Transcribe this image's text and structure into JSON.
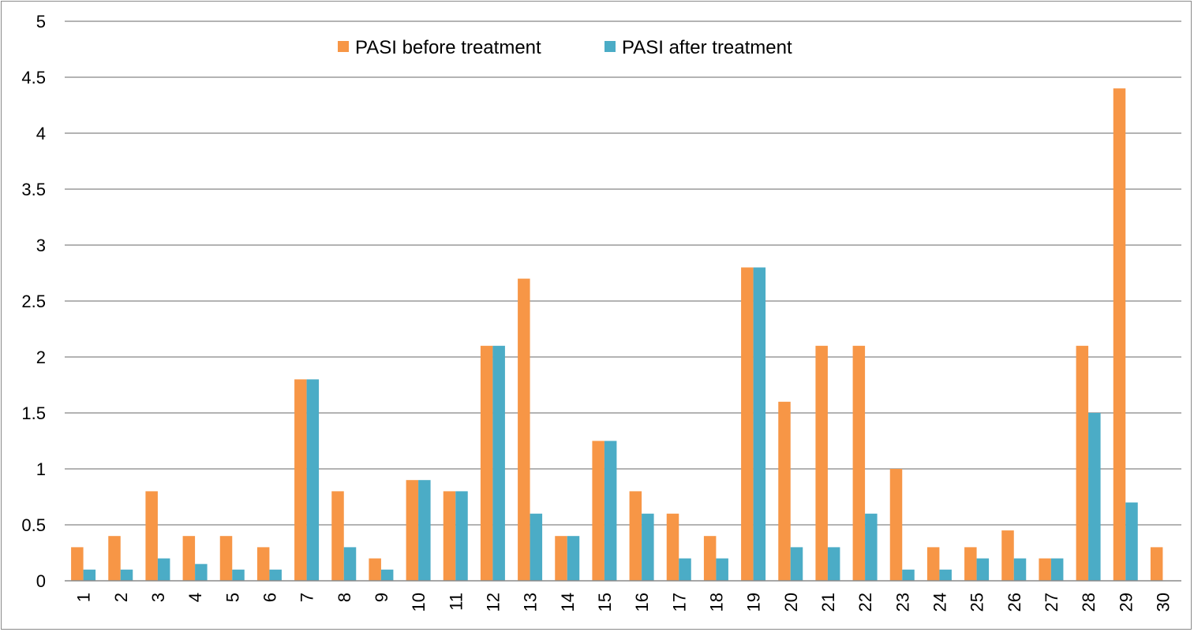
{
  "chart_data": {
    "type": "bar",
    "title": "",
    "xlabel": "",
    "ylabel": "",
    "ylim": [
      0,
      5
    ],
    "yticks": [
      "0",
      "0.5",
      "1",
      "1.5",
      "2",
      "2.5",
      "3",
      "3.5",
      "4",
      "4.5",
      "5"
    ],
    "grid": true,
    "legend_position": "top-center",
    "categories": [
      "1",
      "2",
      "3",
      "4",
      "5",
      "6",
      "7",
      "8",
      "9",
      "10",
      "11",
      "12",
      "13",
      "14",
      "15",
      "16",
      "17",
      "18",
      "19",
      "20",
      "21",
      "22",
      "23",
      "24",
      "25",
      "26",
      "27",
      "28",
      "29",
      "30"
    ],
    "series": [
      {
        "name": "PASI before treatment",
        "color": "#F79646",
        "values": [
          0.3,
          0.4,
          0.8,
          0.4,
          0.4,
          0.3,
          1.8,
          0.8,
          0.2,
          0.9,
          0.8,
          2.1,
          2.7,
          0.4,
          1.25,
          0.8,
          0.6,
          0.4,
          2.8,
          1.6,
          2.1,
          2.1,
          1.0,
          0.3,
          0.3,
          0.45,
          0.2,
          2.1,
          4.4,
          0.3
        ]
      },
      {
        "name": "PASI after treatment",
        "color": "#4BACC6",
        "values": [
          0.1,
          0.1,
          0.2,
          0.15,
          0.1,
          0.1,
          1.8,
          0.3,
          0.1,
          0.9,
          0.8,
          2.1,
          0.6,
          0.4,
          1.25,
          0.6,
          0.2,
          0.2,
          2.8,
          0.3,
          0.3,
          0.6,
          0.1,
          0.1,
          0.2,
          0.2,
          0.2,
          1.5,
          0.7,
          0
        ]
      }
    ]
  }
}
